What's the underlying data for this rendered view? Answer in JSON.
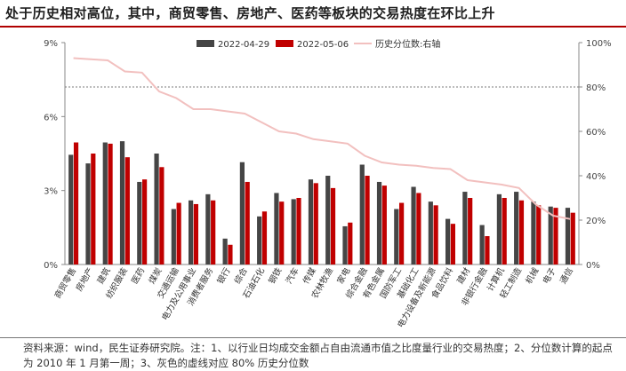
{
  "title": "处于历史相对高位，其中，商贸零售、房地产、医药等板块的交易热度在环比上升",
  "footer": "资料来源：wind，民生证券研究院。注：1、以行业日均成交金额占自由流通市值之比度量行业的交易热度；2、分位数计算的起点为 2010 年 1 月第一周；3、灰色的虚线对应 80% 历史分位数",
  "colors": {
    "s1": "#454545",
    "s2": "#c00000",
    "line": "#f2c0bf",
    "ref": "#7a7a7a"
  },
  "chart_data": {
    "type": "bar",
    "categories": [
      "商贸零售",
      "房地产",
      "建筑",
      "纺织服装",
      "医药",
      "煤炭",
      "交通运输",
      "电力及公用事业",
      "消费者服务",
      "银行",
      "综合",
      "石油石化",
      "钢铁",
      "汽车",
      "传媒",
      "农林牧渔",
      "家电",
      "综合金融",
      "有色金属",
      "国防军工",
      "基础化工",
      "电力设备及新能源",
      "食品饮料",
      "建材",
      "非银行金融",
      "计算机",
      "轻工制造",
      "机械",
      "电子",
      "通信"
    ],
    "series": [
      {
        "name": "2022-04-29",
        "axis": "left",
        "values": [
          4.45,
          4.1,
          4.95,
          5.0,
          3.35,
          4.5,
          2.25,
          2.6,
          2.85,
          1.05,
          4.15,
          1.95,
          2.9,
          2.65,
          3.45,
          3.6,
          1.55,
          4.05,
          3.35,
          2.25,
          3.15,
          2.55,
          1.85,
          2.95,
          1.6,
          2.85,
          2.95,
          2.55,
          2.35,
          2.3
        ]
      },
      {
        "name": "2022-05-06",
        "axis": "left",
        "values": [
          4.95,
          4.5,
          4.9,
          4.35,
          3.45,
          3.95,
          2.5,
          2.45,
          2.6,
          0.8,
          3.35,
          2.15,
          2.55,
          2.7,
          3.3,
          3.1,
          1.7,
          3.6,
          3.2,
          2.5,
          2.9,
          2.4,
          1.65,
          2.7,
          1.15,
          2.7,
          2.6,
          2.4,
          2.3,
          2.1
        ]
      },
      {
        "name": "历史分位数:右轴",
        "axis": "right",
        "type": "line",
        "values": [
          93,
          92.5,
          92,
          87,
          86.5,
          78,
          75,
          70,
          70,
          69,
          68,
          64,
          60,
          59,
          56.5,
          55.5,
          54.5,
          49,
          46,
          45,
          44.5,
          43.5,
          43,
          38,
          37,
          36,
          34.5,
          27,
          22,
          20.5
        ]
      }
    ],
    "y_left": {
      "ticks": [
        "0%",
        "3%",
        "6%",
        "9%"
      ],
      "lim": [
        0,
        9
      ]
    },
    "y_right": {
      "ticks": [
        "0%",
        "20%",
        "40%",
        "60%",
        "80%",
        "100%"
      ],
      "lim": [
        0,
        100
      ]
    },
    "reference_line": {
      "value": 80,
      "axis": "right"
    },
    "legend_position": "top-center"
  }
}
